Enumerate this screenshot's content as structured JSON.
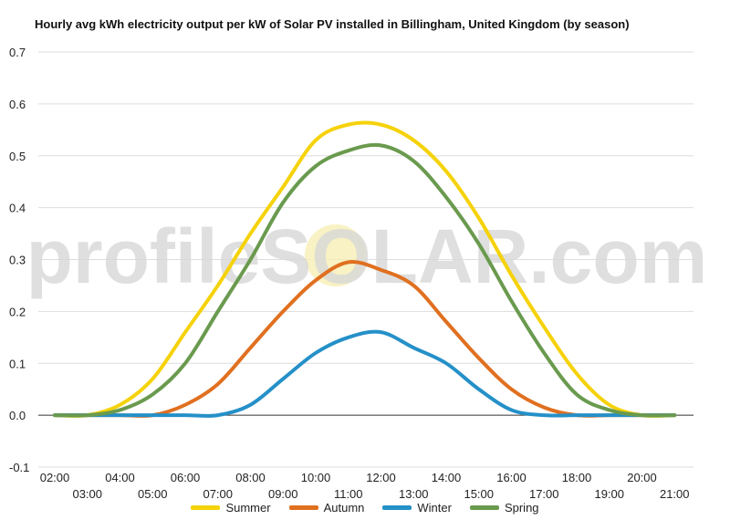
{
  "chart_data": {
    "type": "line",
    "title": "Hourly avg kWh electricity output per kW of Solar PV installed in Billingham, United Kingdom (by season)",
    "watermark": "profileSOLAR.com",
    "ylim": [
      -0.1,
      0.7
    ],
    "y_ticks": [
      "0.7",
      "0.6",
      "0.5",
      "0.4",
      "0.3",
      "0.2",
      "0.1",
      "0.0",
      "-0.1"
    ],
    "x_ticks_upper": [
      "02:00",
      "04:00",
      "06:00",
      "08:00",
      "10:00",
      "12:00",
      "14:00",
      "16:00",
      "18:00",
      "20:00"
    ],
    "x_ticks_lower": [
      "03:00",
      "05:00",
      "07:00",
      "09:00",
      "11:00",
      "13:00",
      "15:00",
      "17:00",
      "19:00",
      "21:00"
    ],
    "x": [
      "02:00",
      "03:00",
      "04:00",
      "05:00",
      "06:00",
      "07:00",
      "08:00",
      "09:00",
      "10:00",
      "11:00",
      "12:00",
      "13:00",
      "14:00",
      "15:00",
      "16:00",
      "17:00",
      "18:00",
      "19:00",
      "20:00",
      "21:00"
    ],
    "series": [
      {
        "name": "Summer",
        "color": "#f5d20a",
        "values": [
          0.0,
          0.0,
          0.02,
          0.07,
          0.16,
          0.25,
          0.35,
          0.44,
          0.53,
          0.56,
          0.56,
          0.53,
          0.47,
          0.38,
          0.27,
          0.17,
          0.08,
          0.02,
          0.0,
          0.0
        ]
      },
      {
        "name": "Autumn",
        "color": "#e07020",
        "values": [
          0.0,
          0.0,
          0.0,
          0.0,
          0.02,
          0.06,
          0.13,
          0.2,
          0.26,
          0.295,
          0.28,
          0.25,
          0.18,
          0.11,
          0.05,
          0.015,
          0.0,
          0.0,
          0.0,
          0.0
        ]
      },
      {
        "name": "Winter",
        "color": "#2590c8",
        "values": [
          0.0,
          0.0,
          0.0,
          0.0,
          0.0,
          0.0,
          0.02,
          0.07,
          0.12,
          0.15,
          0.16,
          0.13,
          0.1,
          0.05,
          0.01,
          0.0,
          0.0,
          0.0,
          0.0,
          0.0
        ]
      },
      {
        "name": "Spring",
        "color": "#6a9a4e",
        "values": [
          0.0,
          0.0,
          0.01,
          0.04,
          0.1,
          0.2,
          0.3,
          0.41,
          0.48,
          0.51,
          0.52,
          0.49,
          0.42,
          0.33,
          0.22,
          0.12,
          0.04,
          0.01,
          0.0,
          0.0
        ]
      }
    ]
  }
}
